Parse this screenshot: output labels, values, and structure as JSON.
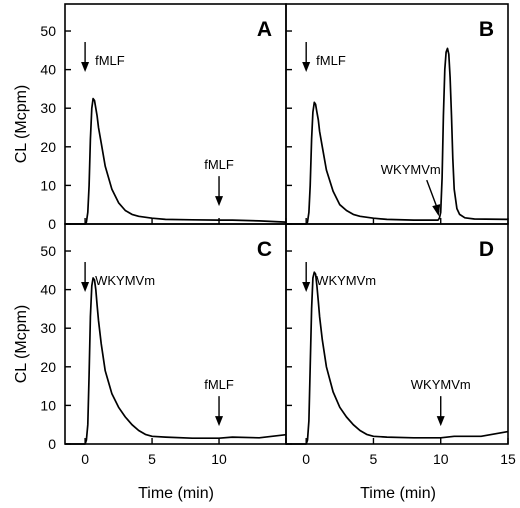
{
  "figure": {
    "ylabel": "CL (Mcpm)",
    "xlabel": "Time (min)"
  },
  "chart_data": [
    {
      "panel": "A",
      "type": "line",
      "xlim": [
        -1.5,
        15
      ],
      "ylim": [
        0,
        57
      ],
      "xticks": [
        0,
        5,
        10,
        15
      ],
      "yticks": [
        0,
        10,
        20,
        30,
        40,
        50
      ],
      "x": [
        -1.5,
        0,
        0.1,
        0.2,
        0.3,
        0.4,
        0.5,
        0.6,
        0.7,
        0.8,
        0.9,
        1.0,
        1.2,
        1.5,
        2.0,
        2.5,
        3.0,
        3.5,
        4.0,
        5.0,
        6.0,
        8.0,
        10.0,
        11.0,
        13.0,
        15.0
      ],
      "y": [
        0,
        0,
        0.5,
        3,
        10,
        22,
        30,
        32.5,
        32,
        30,
        28,
        25,
        21,
        15,
        9,
        5.5,
        3.5,
        2.5,
        2,
        1.5,
        1.2,
        1.1,
        1,
        1,
        0.8,
        0.5
      ],
      "annotations": [
        {
          "label": "fMLF",
          "x": 0
        },
        {
          "label": "fMLF",
          "x": 10
        }
      ]
    },
    {
      "panel": "B",
      "type": "line",
      "xlim": [
        -1.5,
        15
      ],
      "ylim": [
        0,
        57
      ],
      "xticks": [
        0,
        5,
        10,
        15
      ],
      "yticks": [
        0,
        10,
        20,
        30,
        40,
        50
      ],
      "x": [
        -1.5,
        0,
        0.1,
        0.2,
        0.3,
        0.4,
        0.5,
        0.6,
        0.7,
        0.8,
        0.9,
        1.0,
        1.2,
        1.5,
        2.0,
        2.5,
        3.0,
        3.5,
        4.0,
        5.0,
        6.0,
        8.0,
        9.5,
        9.8,
        9.9,
        10.0,
        10.1,
        10.2,
        10.3,
        10.4,
        10.5,
        10.6,
        10.7,
        10.8,
        10.9,
        11.0,
        11.2,
        11.4,
        11.8,
        12.5,
        15.0
      ],
      "y": [
        0,
        0,
        0.5,
        3,
        10,
        22,
        29,
        31.5,
        31,
        29,
        27,
        24,
        20,
        14,
        8.5,
        5,
        3.5,
        2.5,
        2,
        1.5,
        1.2,
        1,
        1,
        1,
        1.5,
        3,
        12,
        28,
        40,
        44.5,
        45.5,
        44,
        38,
        28,
        17,
        9,
        4,
        2.5,
        1.6,
        1.3,
        1.2
      ],
      "annotations": [
        {
          "label": "fMLF",
          "x": 0
        },
        {
          "label": "WKYMVm",
          "x": 10
        }
      ]
    },
    {
      "panel": "C",
      "type": "line",
      "xlim": [
        -1.5,
        15
      ],
      "ylim": [
        0,
        57
      ],
      "xticks": [
        0,
        5,
        10,
        15
      ],
      "yticks": [
        0,
        10,
        20,
        30,
        40,
        50
      ],
      "x": [
        -1.5,
        0,
        0.1,
        0.2,
        0.3,
        0.4,
        0.5,
        0.6,
        0.7,
        0.8,
        0.9,
        1.0,
        1.2,
        1.5,
        2.0,
        2.5,
        3.0,
        3.5,
        4.0,
        4.5,
        5.0,
        6.0,
        8.0,
        10.0,
        11.0,
        13.0,
        15.0
      ],
      "y": [
        0,
        0,
        1,
        5,
        18,
        33,
        41,
        43,
        42.5,
        40,
        36,
        32,
        26,
        19,
        13,
        9.5,
        7,
        5,
        3.5,
        2.5,
        2,
        1.8,
        1.5,
        1.5,
        1.8,
        1.6,
        2.4
      ],
      "annotations": [
        {
          "label": "WKYMVm",
          "x": 0
        },
        {
          "label": "fMLF",
          "x": 10
        }
      ]
    },
    {
      "panel": "D",
      "type": "line",
      "xlim": [
        -1.5,
        15
      ],
      "ylim": [
        0,
        57
      ],
      "xticks": [
        0,
        5,
        10,
        15
      ],
      "yticks": [
        0,
        10,
        20,
        30,
        40,
        50
      ],
      "x": [
        -1.5,
        0,
        0.1,
        0.2,
        0.3,
        0.4,
        0.5,
        0.6,
        0.7,
        0.8,
        0.9,
        1.0,
        1.2,
        1.5,
        2.0,
        2.5,
        3.0,
        3.5,
        4.0,
        4.5,
        5.0,
        6.0,
        8.0,
        10.0,
        11.0,
        13.0,
        15.0
      ],
      "y": [
        0,
        0,
        1,
        6,
        20,
        35,
        43,
        44.5,
        44,
        41,
        37,
        33,
        27,
        20,
        13.5,
        9.5,
        7,
        5,
        3.5,
        2.5,
        2,
        1.8,
        1.6,
        1.6,
        2,
        2,
        3.2
      ],
      "annotations": [
        {
          "label": "WKYMVm",
          "x": 0
        },
        {
          "label": "WKYMVm",
          "x": 10
        }
      ]
    }
  ]
}
